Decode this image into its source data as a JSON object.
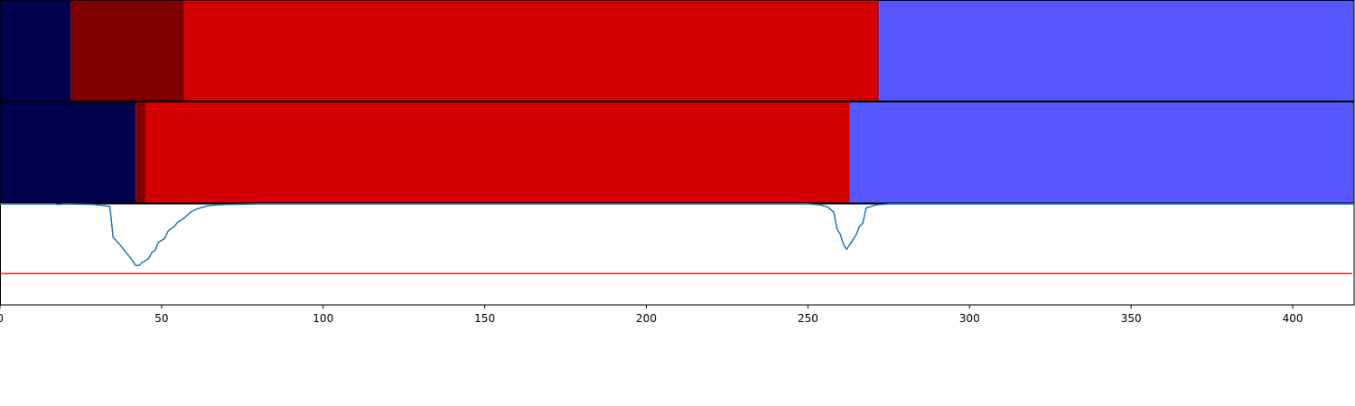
{
  "chart_data": {
    "type": "area",
    "x_axis": {
      "range": [
        0,
        419
      ],
      "ticks": [
        0,
        50,
        100,
        150,
        200,
        250,
        300,
        350,
        400
      ],
      "tick_labels": [
        "0",
        "50",
        "100",
        "150",
        "200",
        "250",
        "300",
        "350",
        "400"
      ]
    },
    "segment_tracks": [
      {
        "segments": [
          {
            "start": 0,
            "end": 22,
            "color": "#00004c"
          },
          {
            "start": 22,
            "end": 57,
            "color": "#7f0000"
          },
          {
            "start": 57,
            "end": 272,
            "color": "#d20000"
          },
          {
            "start": 272,
            "end": 419,
            "color": "#5757ff"
          }
        ]
      },
      {
        "segments": [
          {
            "start": 0,
            "end": 42,
            "color": "#00004c"
          },
          {
            "start": 42,
            "end": 45,
            "color": "#7f0000"
          },
          {
            "start": 45,
            "end": 263,
            "color": "#d20000"
          },
          {
            "start": 263,
            "end": 419,
            "color": "#5757ff"
          }
        ]
      }
    ],
    "curve": {
      "color": "#1f77b4",
      "ylim": [
        0,
        1
      ],
      "points": [
        [
          0,
          1.0
        ],
        [
          17,
          1.0
        ],
        [
          18,
          0.995
        ],
        [
          20,
          1.0
        ],
        [
          29,
          0.995
        ],
        [
          32,
          0.985
        ],
        [
          34,
          0.975
        ],
        [
          35,
          0.67
        ],
        [
          37,
          0.6
        ],
        [
          39,
          0.52
        ],
        [
          41,
          0.44
        ],
        [
          42,
          0.39
        ],
        [
          43,
          0.39
        ],
        [
          44,
          0.42
        ],
        [
          45,
          0.44
        ],
        [
          46,
          0.46
        ],
        [
          47,
          0.52
        ],
        [
          48,
          0.54
        ],
        [
          49,
          0.62
        ],
        [
          51,
          0.66
        ],
        [
          52,
          0.73
        ],
        [
          54,
          0.78
        ],
        [
          55,
          0.82
        ],
        [
          57,
          0.86
        ],
        [
          59,
          0.92
        ],
        [
          61,
          0.95
        ],
        [
          64,
          0.98
        ],
        [
          67,
          0.99
        ],
        [
          71,
          0.995
        ],
        [
          80,
          1.0
        ],
        [
          250,
          1.0
        ],
        [
          254,
          0.99
        ],
        [
          256,
          0.97
        ],
        [
          258,
          0.92
        ],
        [
          259,
          0.75
        ],
        [
          260,
          0.7
        ],
        [
          261,
          0.6
        ],
        [
          262,
          0.55
        ],
        [
          263,
          0.6
        ],
        [
          264,
          0.65
        ],
        [
          265,
          0.7
        ],
        [
          266,
          0.78
        ],
        [
          267,
          0.81
        ],
        [
          268,
          0.96
        ],
        [
          269,
          0.97
        ],
        [
          271,
          0.99
        ],
        [
          275,
          1.0
        ],
        [
          419,
          1.0
        ]
      ]
    },
    "threshold_line": {
      "y": 0.31,
      "color": "#d62728"
    }
  }
}
